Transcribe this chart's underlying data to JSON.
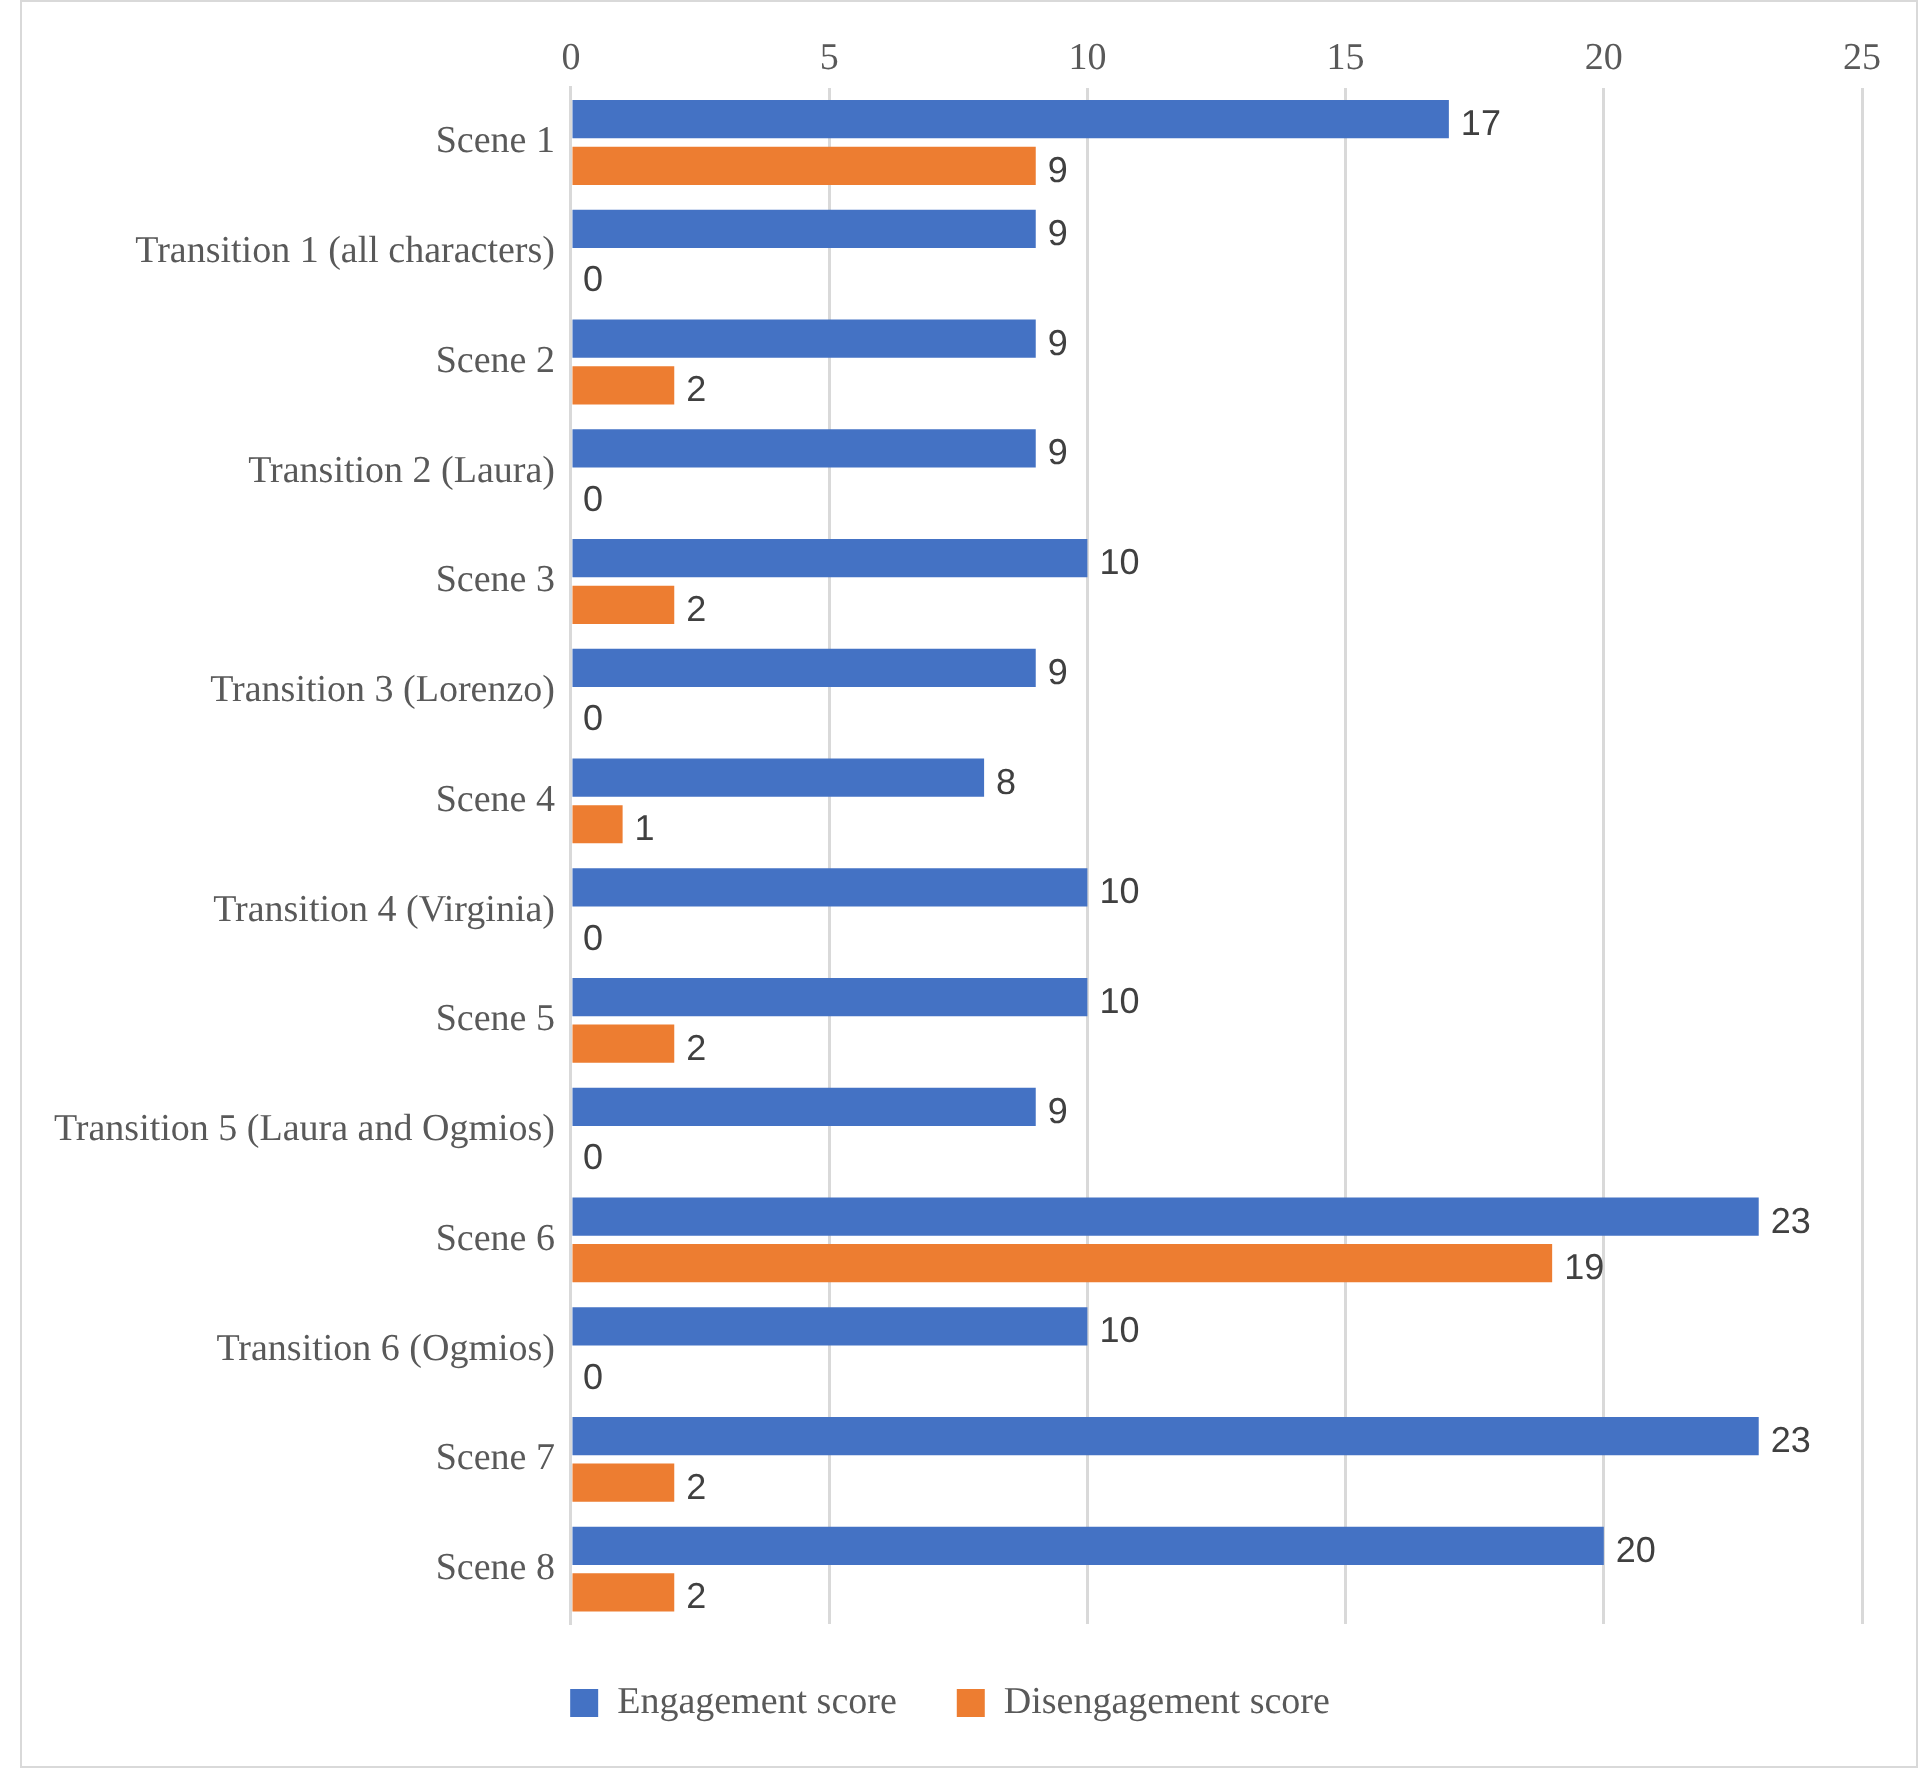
{
  "chart_data": {
    "type": "bar",
    "orientation": "horizontal",
    "categories": [
      "Scene 1",
      "Transition 1 (all characters)",
      "Scene 2",
      "Transition 2 (Laura)",
      "Scene 3",
      "Transition 3 (Lorenzo)",
      "Scene 4",
      "Transition 4 (Virginia)",
      "Scene 5",
      "Transition 5 (Laura and Ogmios)",
      "Scene 6",
      "Transition 6 (Ogmios)",
      "Scene 7",
      "Scene 8"
    ],
    "series": [
      {
        "name": "Engagement score",
        "color": "#4472c4",
        "values": [
          17,
          9,
          9,
          9,
          10,
          9,
          8,
          10,
          10,
          9,
          23,
          10,
          23,
          20
        ]
      },
      {
        "name": "Disengagement score",
        "color": "#ed7d31",
        "values": [
          9,
          0,
          2,
          0,
          2,
          0,
          1,
          0,
          2,
          0,
          19,
          0,
          2,
          2
        ]
      }
    ],
    "xlim": [
      0,
      25
    ],
    "xticks": [
      0,
      5,
      10,
      15,
      20,
      25
    ],
    "grid": "x",
    "legend": "bottom",
    "data_labels": true
  }
}
